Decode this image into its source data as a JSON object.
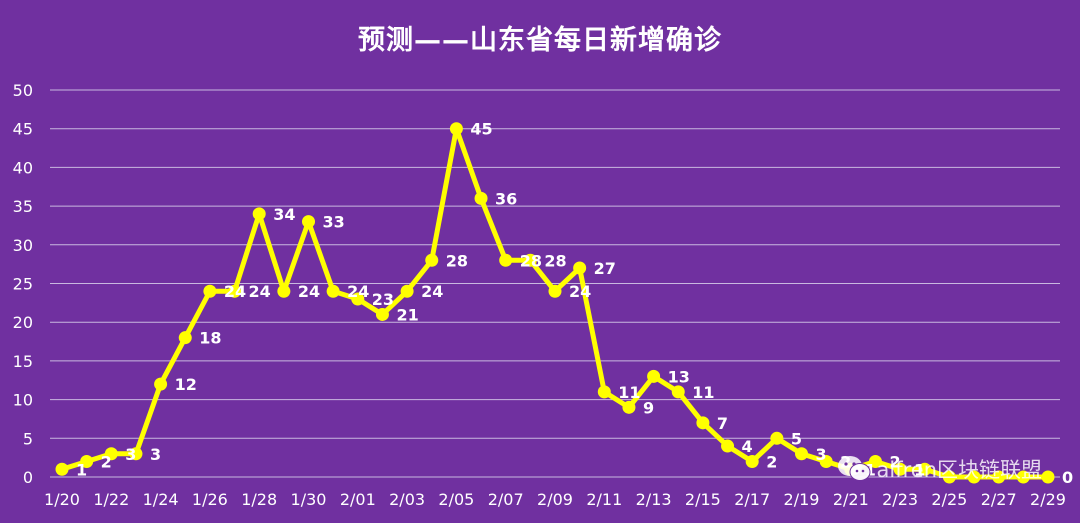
{
  "chart_data": {
    "type": "line",
    "title": "预测——山东省每日新增确诊",
    "xlabel": "",
    "ylabel": "",
    "ylim": [
      0,
      50
    ],
    "yticks": [
      0,
      5,
      10,
      15,
      20,
      25,
      30,
      35,
      40,
      45,
      50
    ],
    "grid": true,
    "x": [
      "1/20",
      "1/21",
      "1/22",
      "1/23",
      "1/24",
      "1/25",
      "1/26",
      "1/27",
      "1/28",
      "1/29",
      "1/30",
      "1/31",
      "2/01",
      "2/02",
      "2/03",
      "2/04",
      "2/05",
      "2/06",
      "2/07",
      "2/08",
      "2/09",
      "2/10",
      "2/11",
      "2/12",
      "2/13",
      "2/14",
      "2/15",
      "2/16",
      "2/17",
      "2/18",
      "2/19",
      "2/20",
      "2/21",
      "2/22",
      "2/23",
      "2/24",
      "2/25",
      "2/26",
      "2/27",
      "2/28",
      "2/29"
    ],
    "xtick_labels": [
      "1/20",
      "1/22",
      "1/24",
      "1/26",
      "1/28",
      "1/30",
      "2/01",
      "2/03",
      "2/05",
      "2/07",
      "2/09",
      "2/11",
      "2/13",
      "2/15",
      "2/17",
      "2/19",
      "2/21",
      "2/23",
      "2/25",
      "2/27",
      "2/29"
    ],
    "values": [
      1,
      2,
      3,
      3,
      12,
      18,
      24,
      24,
      34,
      24,
      33,
      24,
      23,
      21,
      24,
      28,
      45,
      36,
      28,
      28,
      24,
      27,
      11,
      9,
      13,
      11,
      7,
      4,
      2,
      5,
      3,
      2,
      1,
      2,
      1,
      1,
      0,
      0,
      0,
      0,
      0
    ],
    "point_labels": [
      "1",
      "2",
      "3",
      "3",
      "12",
      "18",
      "24",
      "24",
      "34",
      "24",
      "33",
      "24",
      "23",
      "21",
      "24",
      "28",
      "45",
      "36",
      "28",
      "28",
      "24",
      "27",
      "11",
      "9",
      "13",
      "11",
      "7",
      "4",
      "2",
      "5",
      "3",
      "2",
      "1",
      "2",
      "1",
      "",
      "",
      "",
      "",
      "",
      "0"
    ],
    "colors": {
      "background": "#7030A0",
      "line": "#FFFF00",
      "grid": "#C9B8E0",
      "text": "#FFFFFF"
    }
  },
  "watermark": {
    "icon": "wechat-icon",
    "text": "alfren区块链联盟"
  }
}
